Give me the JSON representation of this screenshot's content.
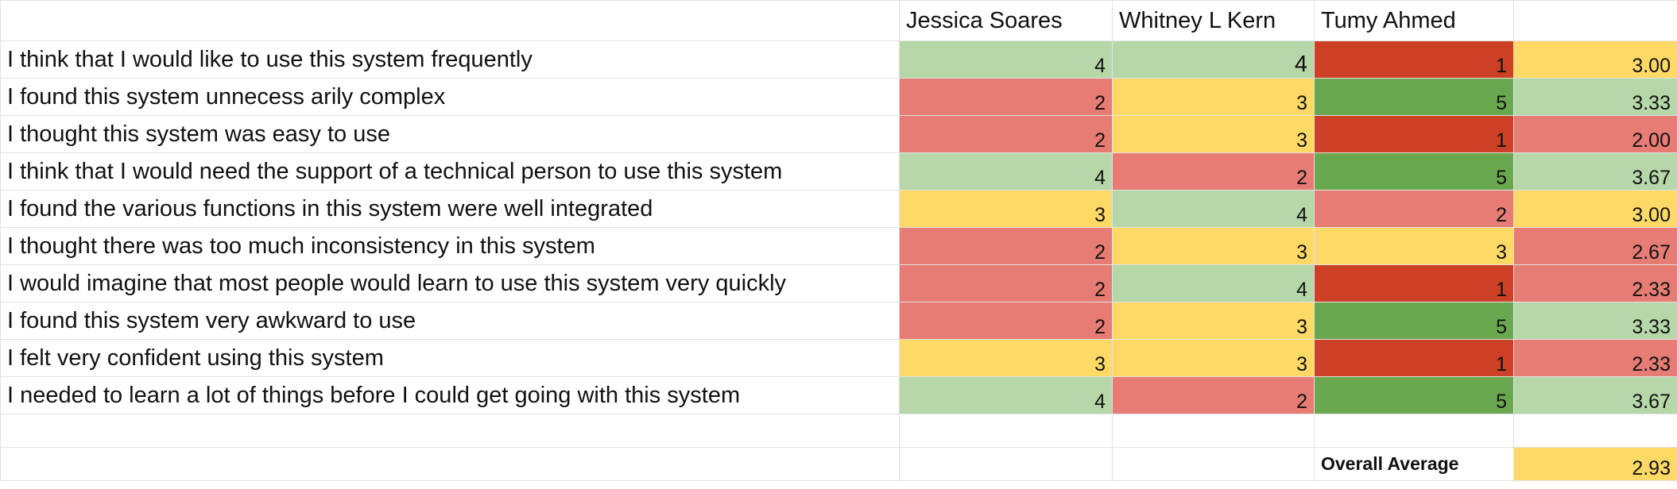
{
  "colors": {
    "light_green": "#b6d7a8",
    "mid_green": "#6aa84f",
    "yellow": "#ffd966",
    "salmon": "#e06666",
    "light_red": "#e67c73",
    "dark_red": "#cc4125"
  },
  "header": {
    "participants": [
      "Jessica Soares",
      "Whitney L Kern",
      "Tumy Ahmed"
    ]
  },
  "rows": [
    {
      "question": "I think that I would like to use this system frequently",
      "scores": [
        "4",
        "4",
        "1"
      ],
      "avg": "3.00"
    },
    {
      "question": "I found this system unnecess arily complex",
      "scores": [
        "2",
        "3",
        "5"
      ],
      "avg": "3.33"
    },
    {
      "question": "I thought this system was easy to use",
      "scores": [
        "2",
        "3",
        "1"
      ],
      "avg": "2.00"
    },
    {
      "question": "I think that I would need the support of a technical person to use this system",
      "scores": [
        "4",
        "2",
        "5"
      ],
      "avg": "3.67"
    },
    {
      "question": "I found the various functions in this system were well integrated",
      "scores": [
        "3",
        "4",
        "2"
      ],
      "avg": "3.00"
    },
    {
      "question": "I thought there was too much inconsistency in this system",
      "scores": [
        "2",
        "3",
        "3"
      ],
      "avg": "2.67"
    },
    {
      "question": "I would imagine that most people would learn to use this system very quickly",
      "scores": [
        "2",
        "4",
        "1"
      ],
      "avg": "2.33"
    },
    {
      "question": "I found this system very awkward to use",
      "scores": [
        "2",
        "3",
        "5"
      ],
      "avg": "3.33"
    },
    {
      "question": "I felt very confident using this system",
      "scores": [
        "3",
        "3",
        "1"
      ],
      "avg": "2.33"
    },
    {
      "question": "I needed to learn a lot of things before I could get going with this system",
      "scores": [
        "4",
        "2",
        "5"
      ],
      "avg": "3.67"
    }
  ],
  "footer": {
    "label": "Overall Average",
    "value": "2.93"
  }
}
